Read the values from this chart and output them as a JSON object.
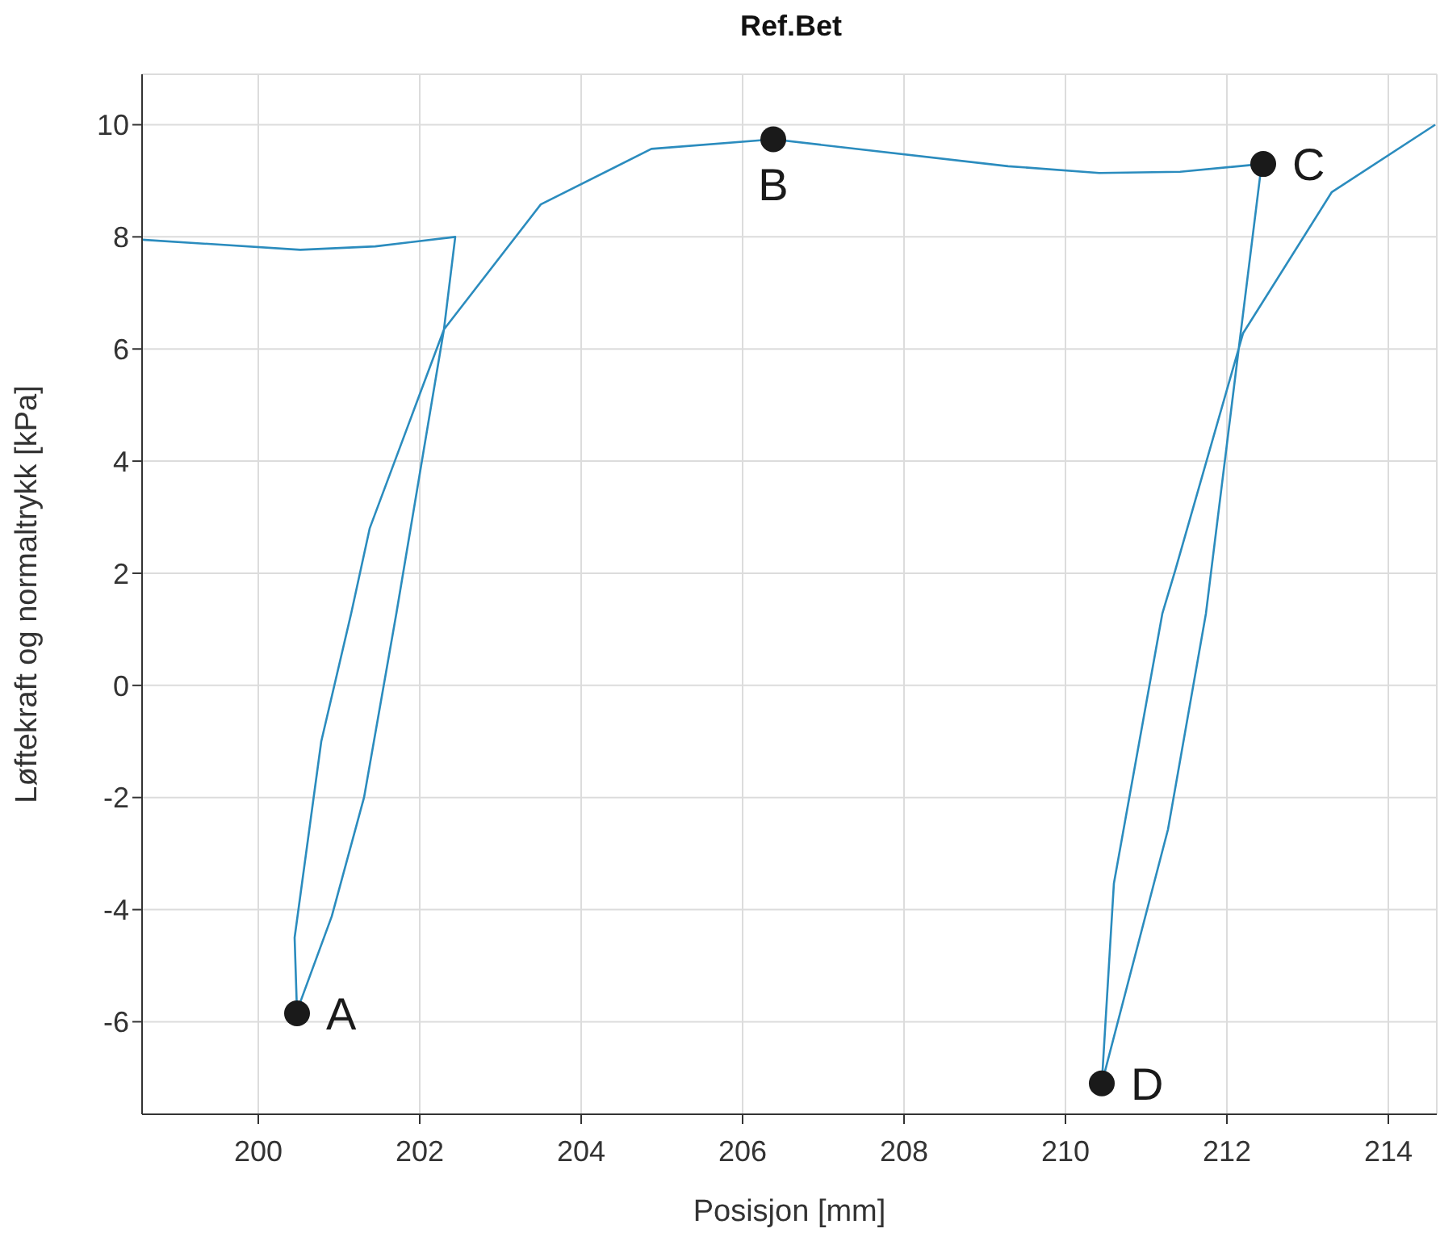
{
  "chart_data": {
    "type": "line",
    "title": "Ref.Bet",
    "xlabel": "Posisjon [mm]",
    "ylabel": "Løftekraft og normaltrykk [kPa]",
    "xlim": [
      198.56,
      214.6
    ],
    "xticks": [
      200,
      202,
      204,
      206,
      208,
      210,
      212,
      214
    ],
    "ylim": [
      -7.65,
      10.9
    ],
    "yticks": [
      -6,
      -4,
      -2,
      0,
      2,
      4,
      6,
      8,
      10
    ],
    "grid": true,
    "legend": false,
    "marker": "none",
    "line_style": "solid",
    "series": [
      {
        "color": "#2b8cbe",
        "x": [
          198.56,
          200.52,
          201.45,
          202.44,
          202.3,
          201.71,
          201.31,
          200.91,
          200.52,
          200.48,
          200.45,
          200.78,
          201.15,
          201.38,
          202.3,
          203.5,
          204.87,
          206.38,
          209.29,
          210.42,
          211.42,
          212.43,
          211.74,
          211.27,
          210.45,
          210.6,
          211.2,
          211.36,
          212.2,
          213.3,
          214.58
        ],
        "values": [
          7.95,
          7.77,
          7.83,
          8.0,
          6.35,
          1.28,
          -2.0,
          -4.12,
          -5.65,
          -5.85,
          -4.5,
          -1.0,
          1.28,
          2.8,
          6.35,
          8.58,
          9.57,
          9.74,
          9.26,
          9.14,
          9.16,
          9.3,
          1.28,
          -2.57,
          -7.1,
          -3.53,
          1.28,
          2.05,
          6.28,
          8.8,
          10.0
        ]
      }
    ],
    "annotations": [
      {
        "text": "A",
        "x": 200.48,
        "y": -5.85
      },
      {
        "text": "B",
        "x": 206.38,
        "y": 9.74
      },
      {
        "text": "C",
        "x": 212.45,
        "y": 9.3
      },
      {
        "text": "D",
        "x": 210.45,
        "y": -7.1
      }
    ]
  }
}
